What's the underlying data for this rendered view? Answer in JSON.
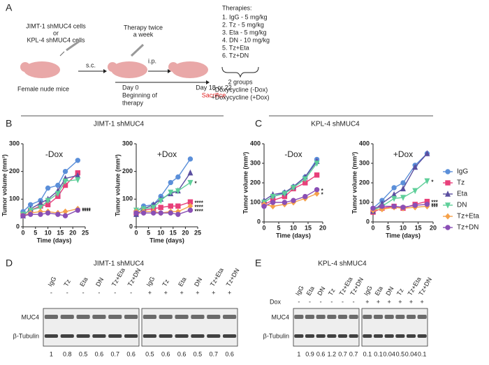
{
  "diagram": {
    "label": "A",
    "cells": [
      "JIMT-1 shMUC4 cells",
      "or",
      "KPL-4 shMUC4 cells"
    ],
    "injection": "s.c.",
    "therapy": [
      "Therapy twice",
      "a week"
    ],
    "route": "i.p.",
    "mice": "Female nude mice",
    "day0": [
      "Day 0",
      "Beginning of",
      "therapy"
    ],
    "end": "Day 18 or 22",
    "sacrifice": "Sacrifice",
    "therapies_title": "Therapies:",
    "therapies": [
      "1. IgG - 5 mg/kg",
      "2. Tz - 5 mg/kg",
      "3. Eta - 5 mg/kg",
      "4. DN - 10 mg/kg",
      "5. Tz+Eta",
      "6. Tz+DN"
    ],
    "groups": [
      "2 groups",
      "-Doxycycline (-Dox)",
      "+Doxycycline (+Dox)"
    ]
  },
  "panels": [
    {
      "label": "B",
      "title": "JIMT-1 shMUC4"
    },
    {
      "label": "C",
      "title": "KPL-4 shMUC4"
    }
  ],
  "chart_data": [
    {
      "type": "line",
      "subtitle": "-Dox",
      "xlabel": "Time (days)",
      "ylabel": "Tumor volume (mm³)",
      "x": [
        0,
        3,
        7,
        10,
        14,
        17,
        22
      ],
      "xlim": [
        0,
        25
      ],
      "xticks": [
        0,
        5,
        10,
        15,
        20,
        25
      ],
      "ylim": [
        0,
        300
      ],
      "yticks": [
        0,
        100,
        200,
        300
      ],
      "series": [
        {
          "name": "IgG",
          "color": "#5b8fd9",
          "marker": "circle",
          "values": [
            55,
            80,
            95,
            140,
            150,
            200,
            240
          ]
        },
        {
          "name": "Tz",
          "color": "#e8407a",
          "marker": "square",
          "values": [
            45,
            60,
            75,
            80,
            110,
            150,
            195
          ]
        },
        {
          "name": "Eta",
          "color": "#5a4fa0",
          "marker": "triangle-up",
          "values": [
            40,
            65,
            85,
            100,
            130,
            175,
            185
          ]
        },
        {
          "name": "DN",
          "color": "#5fcf9a",
          "marker": "triangle-down",
          "values": [
            45,
            60,
            70,
            95,
            120,
            165,
            170
          ]
        },
        {
          "name": "Tz+Eta",
          "color": "#f5a14a",
          "marker": "diamond",
          "values": [
            40,
            50,
            55,
            55,
            50,
            55,
            65
          ],
          "annotation": "****"
        },
        {
          "name": "Tz+DN",
          "color": "#8a4fb5",
          "marker": "circle",
          "values": [
            40,
            45,
            45,
            50,
            45,
            40,
            60
          ],
          "annotation": "****"
        }
      ]
    },
    {
      "type": "line",
      "subtitle": "+Dox",
      "xlabel": "Time (days)",
      "ylabel": "Tumor volume (mm³)",
      "x": [
        0,
        3,
        7,
        10,
        14,
        17,
        22
      ],
      "xlim": [
        0,
        25
      ],
      "xticks": [
        0,
        5,
        10,
        15,
        20,
        25
      ],
      "ylim": [
        0,
        300
      ],
      "yticks": [
        0,
        100,
        200,
        300
      ],
      "series": [
        {
          "name": "IgG",
          "color": "#5b8fd9",
          "marker": "circle",
          "values": [
            55,
            75,
            80,
            110,
            160,
            180,
            245
          ]
        },
        {
          "name": "Tz",
          "color": "#e8407a",
          "marker": "square",
          "values": [
            50,
            60,
            65,
            70,
            75,
            75,
            90
          ],
          "annotation": "****"
        },
        {
          "name": "Eta",
          "color": "#5a4fa0",
          "marker": "triangle-up",
          "values": [
            45,
            65,
            80,
            100,
            120,
            130,
            195
          ]
        },
        {
          "name": "DN",
          "color": "#5fcf9a",
          "marker": "triangle-down",
          "values": [
            60,
            65,
            70,
            95,
            125,
            130,
            160
          ],
          "annotation": "*"
        },
        {
          "name": "Tz+Eta",
          "color": "#f5a14a",
          "marker": "diamond",
          "values": [
            55,
            55,
            55,
            50,
            55,
            55,
            75
          ],
          "annotation": "****"
        },
        {
          "name": "Tz+DN",
          "color": "#8a4fb5",
          "marker": "circle",
          "values": [
            50,
            50,
            50,
            50,
            50,
            45,
            60
          ],
          "annotation": "****"
        }
      ]
    },
    {
      "type": "line",
      "subtitle": "-Dox",
      "xlabel": "Time (days)",
      "ylabel": "Tumor volume (mm³)",
      "x": [
        0,
        3,
        7,
        10,
        14,
        18
      ],
      "xlim": [
        0,
        20
      ],
      "xticks": [
        0,
        5,
        10,
        15,
        20
      ],
      "ylim": [
        0,
        400
      ],
      "yticks": [
        0,
        100,
        200,
        300,
        400
      ],
      "series": [
        {
          "name": "IgG",
          "color": "#5b8fd9",
          "marker": "circle",
          "values": [
            100,
            130,
            150,
            180,
            230,
            320
          ]
        },
        {
          "name": "Tz",
          "color": "#e8407a",
          "marker": "square",
          "values": [
            90,
            110,
            130,
            170,
            200,
            240
          ]
        },
        {
          "name": "Eta",
          "color": "#5a4fa0",
          "marker": "triangle-up",
          "values": [
            110,
            140,
            150,
            180,
            230,
            310
          ]
        },
        {
          "name": "DN",
          "color": "#5fcf9a",
          "marker": "triangle-down",
          "values": [
            100,
            130,
            145,
            175,
            220,
            300
          ]
        },
        {
          "name": "Tz+Eta",
          "color": "#f5a14a",
          "marker": "diamond",
          "values": [
            90,
            80,
            90,
            100,
            120,
            145
          ],
          "annotation": "*"
        },
        {
          "name": "Tz+DN",
          "color": "#8a4fb5",
          "marker": "circle",
          "values": [
            80,
            100,
            100,
            110,
            130,
            165
          ],
          "annotation": "*"
        }
      ]
    },
    {
      "type": "line",
      "subtitle": "+Dox",
      "xlabel": "Time (days)",
      "ylabel": "Tumor volume (mm³)",
      "legend": "right",
      "x": [
        0,
        3,
        7,
        10,
        14,
        18
      ],
      "xlim": [
        0,
        20
      ],
      "xticks": [
        0,
        5,
        10,
        15,
        20
      ],
      "ylim": [
        0,
        400
      ],
      "yticks": [
        0,
        100,
        200,
        300,
        400
      ],
      "series": [
        {
          "name": "IgG",
          "color": "#5b8fd9",
          "marker": "circle",
          "values": [
            70,
            110,
            175,
            200,
            290,
            350
          ]
        },
        {
          "name": "Tz",
          "color": "#e8407a",
          "marker": "square",
          "values": [
            50,
            70,
            80,
            70,
            90,
            105
          ],
          "annotation": "***"
        },
        {
          "name": "Eta",
          "color": "#5a4fa0",
          "marker": "triangle-up",
          "values": [
            55,
            95,
            140,
            170,
            280,
            350
          ]
        },
        {
          "name": "DN",
          "color": "#5fcf9a",
          "marker": "triangle-down",
          "values": [
            60,
            80,
            120,
            125,
            160,
            210
          ],
          "annotation": "*"
        },
        {
          "name": "Tz+Eta",
          "color": "#f5a14a",
          "marker": "diamond",
          "values": [
            60,
            65,
            75,
            70,
            75,
            80
          ],
          "annotation": "***"
        },
        {
          "name": "Tz+DN",
          "color": "#8a4fb5",
          "marker": "circle",
          "values": [
            70,
            80,
            80,
            75,
            85,
            90
          ],
          "annotation": "***"
        }
      ]
    }
  ],
  "blots": [
    {
      "label": "D",
      "title": "JIMT-1 shMUC4",
      "lanes": [
        "IgG",
        "Tz",
        "Eta",
        "DN",
        "Tz+Eta",
        "Tz+DN",
        "IgG",
        "Tz",
        "Eta",
        "DN",
        "Tz+Eta",
        "Tz+DN"
      ],
      "dox": [
        "-",
        "-",
        "-",
        "-",
        "-",
        "-",
        "+",
        "+",
        "+",
        "+",
        "+",
        "+"
      ],
      "rows": [
        "MUC4",
        "β-Tubulin"
      ],
      "quant": [
        "1",
        "0.8",
        "0.5",
        "0.6",
        "0.7",
        "0.6",
        "0.5",
        "0.6",
        "0.6",
        "0.5",
        "0.7",
        "0.6"
      ]
    },
    {
      "label": "E",
      "title": "KPL-4 shMUC4",
      "dox_label": "Dox",
      "lanes": [
        "IgG",
        "Eta",
        "DN",
        "Tz",
        "Tz+Eta",
        "Tz+DN",
        "IgG",
        "Eta",
        "DN",
        "Tz",
        "Tz+Eta",
        "Tz+DN"
      ],
      "dox": [
        "-",
        "-",
        "-",
        "-",
        "-",
        "-",
        "+",
        "+",
        "+",
        "+",
        "+",
        "+"
      ],
      "rows": [
        "MUC4",
        "β-Tubulin"
      ],
      "quant": [
        "1",
        "0.9",
        "0.6",
        "1.2",
        "0.7",
        "0.7",
        "0.1",
        "0.1",
        "0.04",
        "0.5",
        "0.04",
        "0.1"
      ]
    }
  ]
}
